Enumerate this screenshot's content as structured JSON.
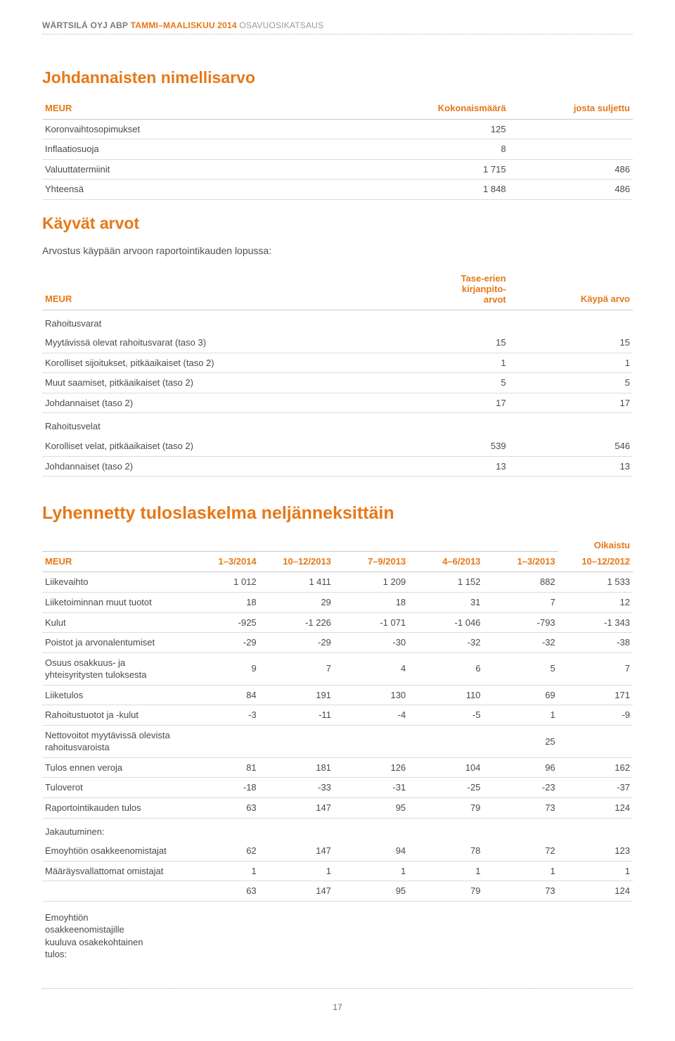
{
  "header": {
    "brand": "WÄRTSILÄ OYJ ABP",
    "period": "TAMMI–MAALISKUU 2014",
    "doc": "OSAVUOSIKATSAUS"
  },
  "table1": {
    "title": "Johdannaisten nimellisarvo",
    "cols": [
      "MEUR",
      "Kokonaismäärä",
      "josta suljettu"
    ],
    "rows": [
      {
        "label": "Koronvaihtosopimukset",
        "v1": "125",
        "v2": ""
      },
      {
        "label": "Inflaatiosuoja",
        "v1": "8",
        "v2": ""
      },
      {
        "label": "Valuuttatermiinit",
        "v1": "1 715",
        "v2": "486"
      },
      {
        "label": "Yhteensä",
        "v1": "1 848",
        "v2": "486"
      }
    ]
  },
  "table2": {
    "title": "Käyvät arvot",
    "intro": "Arvostus käypään arvoon raportointikauden lopussa:",
    "cols": [
      "MEUR",
      "Tase-erien\nkirjanpito-\narvot",
      "Käypä arvo"
    ],
    "sub1": "Rahoitusvarat",
    "rows1": [
      {
        "label": "Myytävissä olevat rahoitusvarat (taso 3)",
        "v1": "15",
        "v2": "15"
      },
      {
        "label": "Korolliset sijoitukset, pitkäaikaiset (taso 2)",
        "v1": "1",
        "v2": "1"
      },
      {
        "label": "Muut saamiset, pitkäaikaiset (taso 2)",
        "v1": "5",
        "v2": "5"
      },
      {
        "label": "Johdannaiset (taso 2)",
        "v1": "17",
        "v2": "17"
      }
    ],
    "sub2": "Rahoitusvelat",
    "rows2": [
      {
        "label": "Korolliset velat, pitkäaikaiset (taso 2)",
        "v1": "539",
        "v2": "546"
      },
      {
        "label": "Johdannaiset (taso 2)",
        "v1": "13",
        "v2": "13"
      }
    ]
  },
  "table3": {
    "title": "Lyhennetty tuloslaskelma neljänneksittäin",
    "sup": "Oikaistu",
    "cols": [
      "MEUR",
      "1–3/2014",
      "10–12/2013",
      "7–9/2013",
      "4–6/2013",
      "1–3/2013",
      "10–12/2012"
    ],
    "rows": [
      {
        "label": "Liikevaihto",
        "c": [
          "1 012",
          "1 411",
          "1 209",
          "1 152",
          "882",
          "1 533"
        ]
      },
      {
        "label": "Liiketoiminnan muut tuotot",
        "c": [
          "18",
          "29",
          "18",
          "31",
          "7",
          "12"
        ]
      },
      {
        "label": "Kulut",
        "c": [
          "-925",
          "-1 226",
          "-1 071",
          "-1 046",
          "-793",
          "-1 343"
        ]
      },
      {
        "label": "Poistot ja arvonalentumiset",
        "c": [
          "-29",
          "-29",
          "-30",
          "-32",
          "-32",
          "-38"
        ]
      },
      {
        "label": "Osuus osakkuus- ja yhteisyritysten tuloksesta",
        "c": [
          "9",
          "7",
          "4",
          "6",
          "5",
          "7"
        ]
      },
      {
        "label": "Liiketulos",
        "c": [
          "84",
          "191",
          "130",
          "110",
          "69",
          "171"
        ]
      },
      {
        "label": "Rahoitustuotot ja -kulut",
        "c": [
          "-3",
          "-11",
          "-4",
          "-5",
          "1",
          "-9"
        ]
      },
      {
        "label": "Nettovoitot myytävissä olevista rahoitusvaroista",
        "c": [
          "",
          "",
          "",
          "",
          "25",
          ""
        ]
      },
      {
        "label": "Tulos ennen veroja",
        "c": [
          "81",
          "181",
          "126",
          "104",
          "96",
          "162"
        ]
      },
      {
        "label": "Tuloverot",
        "c": [
          "-18",
          "-33",
          "-31",
          "-25",
          "-23",
          "-37"
        ]
      },
      {
        "label": "Raportointikauden tulos",
        "c": [
          "63",
          "147",
          "95",
          "79",
          "73",
          "124"
        ]
      }
    ],
    "sub1": "Jakautuminen:",
    "rows2": [
      {
        "label": "Emoyhtiön osakkeenomistajat",
        "c": [
          "62",
          "147",
          "94",
          "78",
          "72",
          "123"
        ]
      },
      {
        "label": "Määräysvallattomat omistajat",
        "c": [
          "1",
          "1",
          "1",
          "1",
          "1",
          "1"
        ]
      },
      {
        "label": "",
        "c": [
          "63",
          "147",
          "95",
          "79",
          "73",
          "124"
        ]
      }
    ],
    "footer_multiline": "Emoyhtiön\nosakkeenomistajille\nkuuluva osakekohtainen\ntulos:"
  },
  "pagenum": "17"
}
